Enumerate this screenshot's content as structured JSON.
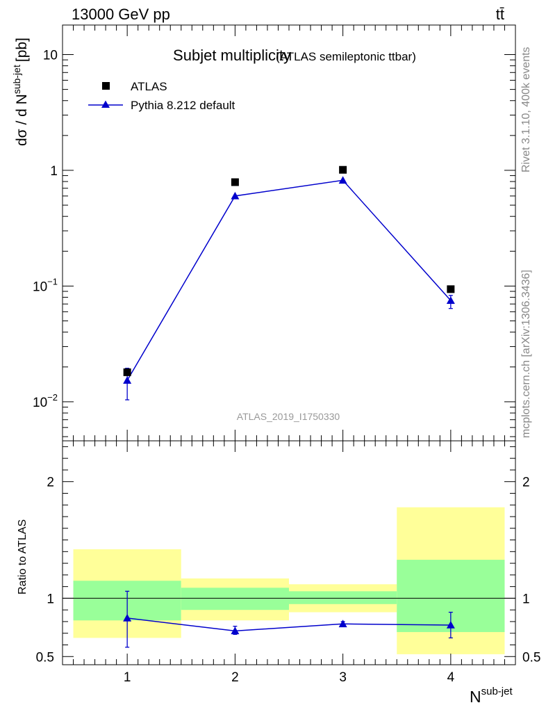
{
  "header": {
    "energy_label": "13000 GeV pp",
    "process_label": "tt̄"
  },
  "side": {
    "rivet_label": "Rivet 3.1.10,  400k events",
    "source_label": "mcplots.cern.ch [arXiv:1306.3436]"
  },
  "chart_data": [
    {
      "type": "scatter",
      "title": "Subjet multiplicity",
      "subtitle": "(ATLAS semileptonic ttbar)",
      "ylabel_main": "dσ / d N",
      "ylabel_sup": "sub-jet",
      "ylabel_unit": "[pb]",
      "watermark": "ATLAS_2019_I1750330",
      "yscale": "log",
      "ylim": [
        0.0046,
        18
      ],
      "xlim": [
        0.4,
        4.6
      ],
      "yticks": [
        {
          "label": "10",
          "value": 10
        },
        {
          "label": "1",
          "value": 1
        },
        {
          "label": "10",
          "sup": "−1",
          "value": 0.1
        },
        {
          "label": "10",
          "sup": "−2",
          "value": 0.01
        }
      ],
      "legend": {
        "placement": "top-left",
        "entries": [
          {
            "label": "ATLAS",
            "marker": "square",
            "color": "#000000"
          },
          {
            "label": "Pythia 8.212 default",
            "marker": "triangle",
            "color": "#0000cc"
          }
        ]
      },
      "series": [
        {
          "name": "ATLAS",
          "marker": "square",
          "color": "#000000",
          "x": [
            1,
            2,
            3,
            4
          ],
          "y": [
            0.018,
            0.79,
            1.01,
            0.094
          ]
        },
        {
          "name": "Pythia 8.212 default",
          "marker": "triangle",
          "color": "#0000cc",
          "x": [
            1,
            2,
            3,
            4
          ],
          "y": [
            0.0153,
            0.6,
            0.82,
            0.075
          ],
          "yerr_low": [
            0.0104,
            0.6,
            0.82,
            0.064
          ],
          "yerr_high": [
            0.0195,
            0.6,
            0.82,
            0.083
          ]
        }
      ]
    },
    {
      "type": "scatter",
      "ylabel": "Ratio to ATLAS",
      "xlabel": "N",
      "xlabel_sup": "sub-jet",
      "ylim": [
        0.43,
        2.35
      ],
      "xlim": [
        0.4,
        4.6
      ],
      "yticks": [
        {
          "label": "0.5",
          "value": 0.5
        },
        {
          "label": "1",
          "value": 1
        },
        {
          "label": "2",
          "value": 2
        }
      ],
      "xticks": [
        {
          "label": "1",
          "value": 1
        },
        {
          "label": "2",
          "value": 2
        },
        {
          "label": "3",
          "value": 3
        },
        {
          "label": "4",
          "value": 4
        }
      ],
      "reference_line": 1,
      "bands": [
        {
          "x": [
            0.5,
            1.5
          ],
          "yellow": [
            0.66,
            1.42
          ],
          "green": [
            0.81,
            1.15
          ]
        },
        {
          "x": [
            1.5,
            2.5
          ],
          "yellow": [
            0.81,
            1.17
          ],
          "green": [
            0.9,
            1.09
          ]
        },
        {
          "x": [
            2.5,
            3.5
          ],
          "yellow": [
            0.88,
            1.12
          ],
          "green": [
            0.95,
            1.06
          ]
        },
        {
          "x": [
            3.5,
            4.5
          ],
          "yellow": [
            0.52,
            1.78
          ],
          "green": [
            0.71,
            1.33
          ]
        }
      ],
      "band_colors": {
        "yellow": "#ffff99",
        "green": "#99ff99"
      },
      "series": [
        {
          "name": "Pythia 8.212 default",
          "marker": "triangle",
          "color": "#0000cc",
          "x": [
            1,
            2,
            3,
            4
          ],
          "y": [
            0.83,
            0.72,
            0.78,
            0.77
          ],
          "yerr_low": [
            0.58,
            0.69,
            0.76,
            0.66
          ],
          "yerr_high": [
            1.06,
            0.76,
            0.8,
            0.88
          ]
        }
      ]
    }
  ]
}
